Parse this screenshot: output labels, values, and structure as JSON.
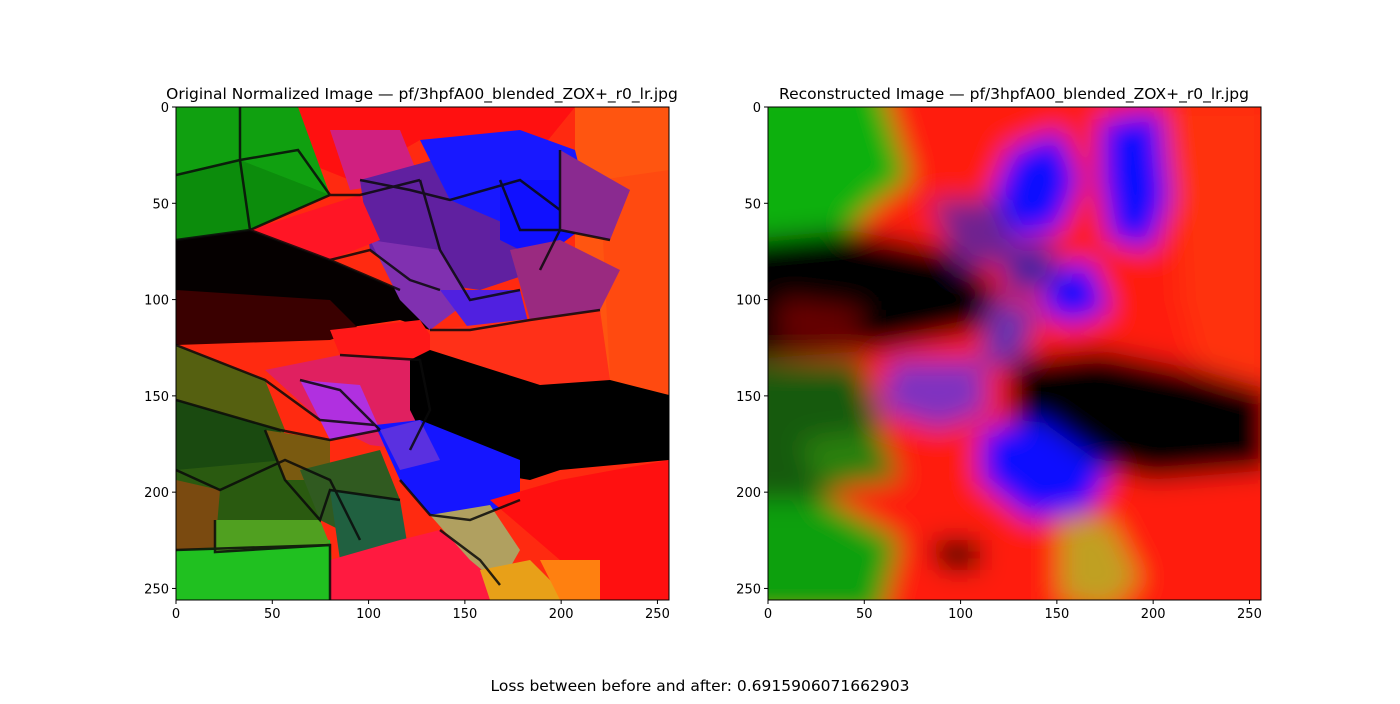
{
  "figure": {
    "caption": "Loss between before and after: 0.6915906071662903"
  },
  "chart_data": [
    {
      "type": "heatmap",
      "title": "Original Normalized Image  —  pf/3hpfA00_blended_ZOX+_r0_lr.jpg",
      "xlim": [
        0,
        256
      ],
      "ylim": [
        256,
        0
      ],
      "xticks": [
        0,
        50,
        100,
        150,
        200,
        250
      ],
      "yticks": [
        0,
        50,
        100,
        150,
        200,
        250
      ],
      "content": "RGB image: Voronoi-style colored grain mosaic (green, red, blue, purple, black regions with dark boundaries)"
    },
    {
      "type": "heatmap",
      "title": "Reconstructed Image  —  pf/3hpfA00_blended_ZOX+_r0_lr.jpg",
      "xlim": [
        0,
        256
      ],
      "ylim": [
        256,
        0
      ],
      "xticks": [
        0,
        50,
        100,
        150,
        200,
        250
      ],
      "yticks": [
        0,
        50,
        100,
        150,
        200,
        250
      ],
      "content": "RGB image: blurred reconstruction of the same colored regions"
    }
  ],
  "colors": {
    "green": "#10a010",
    "red": "#ff1410",
    "orange": "#ff5a10",
    "blue": "#1010ff",
    "purple": "#8a30c0",
    "black": "#000000"
  }
}
